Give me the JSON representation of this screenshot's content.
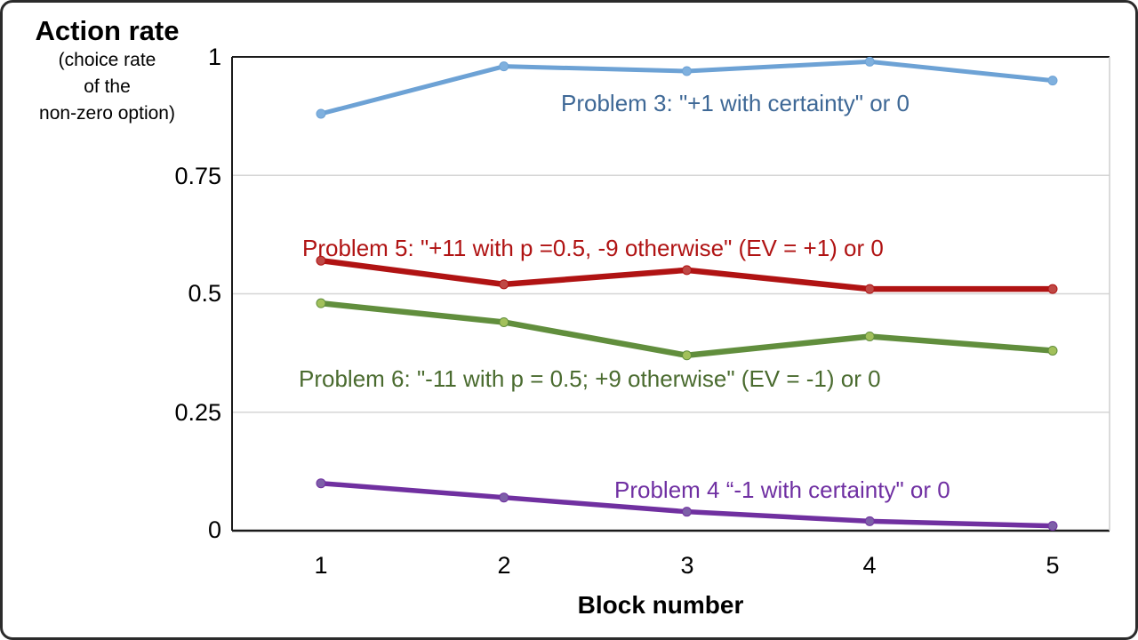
{
  "figure": {
    "y_axis_title": "Action rate",
    "y_axis_subtitle_lines": [
      "(choice rate",
      "of the",
      "non-zero option)"
    ],
    "x_axis_title": "Block number"
  },
  "chart_data": {
    "type": "line",
    "title": "",
    "xlabel": "Block number",
    "ylabel": "Action rate (choice rate of the non-zero option)",
    "x": [
      1,
      2,
      3,
      4,
      5
    ],
    "x_labels": [
      "1",
      "2",
      "3",
      "4",
      "5"
    ],
    "ylim": [
      0,
      1
    ],
    "yticks": [
      0,
      0.25,
      0.5,
      0.75,
      1
    ],
    "ytick_labels": [
      "0",
      "0.25",
      "0.5",
      "0.75",
      "1"
    ],
    "grid": "horizontal gridlines at 0.25, 0.5 and 0.75, light gray",
    "legend_position": "inline colored text labels beside each line",
    "series": [
      {
        "name": "Problem 3",
        "label": "Problem 3: \"+1 with certainty\" or 0",
        "values": [
          0.88,
          0.98,
          0.97,
          0.99,
          0.95
        ],
        "line_color": "#6DA2D5",
        "marker_color": "#7FB0DE",
        "label_color": "#3E6896"
      },
      {
        "name": "Problem 5",
        "label": "Problem 5: \"+11 with p =0.5, -9 otherwise\" (EV = +1) or 0",
        "values": [
          0.57,
          0.52,
          0.55,
          0.51,
          0.51
        ],
        "line_color": "#B01313",
        "marker_color": "#BF4845",
        "label_color": "#B01313"
      },
      {
        "name": "Problem 6",
        "label": "Problem 6: \"-11 with p = 0.5; +9 otherwise\" (EV = -1) or 0",
        "values": [
          0.48,
          0.44,
          0.37,
          0.41,
          0.38
        ],
        "line_color": "#618E3D",
        "marker_color": "#A2C05B",
        "label_color": "#4A6B2F"
      },
      {
        "name": "Problem 4",
        "label": "Problem 4 “-1 with certainty\" or 0",
        "values": [
          0.1,
          0.07,
          0.04,
          0.02,
          0.01
        ],
        "line_color": "#7030A0",
        "marker_color": "#7D5FA8",
        "label_color": "#6F2FA2"
      }
    ]
  }
}
